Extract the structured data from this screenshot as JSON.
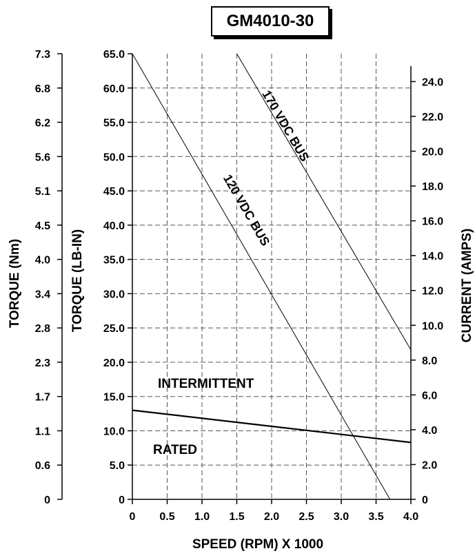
{
  "chart_data": {
    "type": "line",
    "title": "GM4010-30",
    "xlabel": "SPEED (RPM) X 1000",
    "xlim": [
      0,
      4.0
    ],
    "x_ticks": [
      "0",
      "0.5",
      "1.0",
      "1.5",
      "2.0",
      "2.5",
      "3.0",
      "3.5",
      "4.0"
    ],
    "ylabel_left_outer": "TORQUE (Nm)",
    "y_ticks_left_outer": [
      "0",
      "0.6",
      "1.1",
      "1.7",
      "2.3",
      "2.8",
      "3.4",
      "4.0",
      "4.5",
      "5.1",
      "5.6",
      "6.2",
      "6.8",
      "7.3"
    ],
    "ylabel": "TORQUE (LB-IN)",
    "ylim": [
      0,
      65
    ],
    "y_ticks": [
      "0",
      "5.0",
      "10.0",
      "15.0",
      "20.0",
      "25.0",
      "30.0",
      "35.0",
      "40.0",
      "45.0",
      "50.0",
      "55.0",
      "60.0",
      "65.0"
    ],
    "ylabel_right": "CURRENT (AMPS)",
    "ylim_right": [
      0,
      25.6
    ],
    "y_ticks_right": [
      "0",
      "2.0",
      "4.0",
      "6.0",
      "8.0",
      "10.0",
      "12.0",
      "14.0",
      "16.0",
      "18.0",
      "20.0",
      "22.0",
      "24.0"
    ],
    "grid": true,
    "series": [
      {
        "name": "120 VDC BUS",
        "x": [
          0,
          3.7
        ],
        "y": [
          65,
          0
        ]
      },
      {
        "name": "170 VDC BUS",
        "x": [
          1.5,
          4.0
        ],
        "y": [
          65,
          21.8
        ]
      },
      {
        "name": "",
        "x": [
          0,
          4.0
        ],
        "y": [
          13,
          8.3
        ]
      }
    ],
    "region_labels": [
      "INTERMITTENT",
      "RATED"
    ]
  }
}
